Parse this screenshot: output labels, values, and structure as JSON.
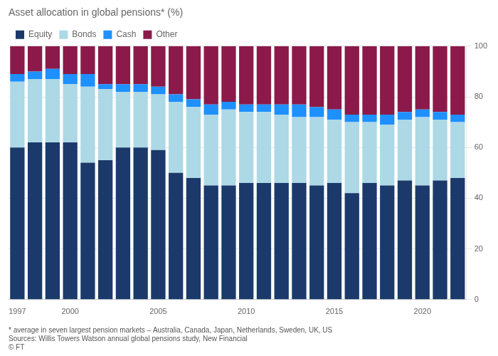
{
  "chart_data": {
    "type": "bar",
    "title": "Asset allocation in global pensions* (%)",
    "categories": [
      1997,
      null,
      null,
      2000,
      null,
      null,
      null,
      null,
      2005,
      null,
      null,
      null,
      null,
      2010,
      null,
      null,
      null,
      null,
      2015,
      null,
      null,
      null,
      null,
      2020,
      null,
      null
    ],
    "series": [
      {
        "name": "Equity",
        "color": "#1b3a6b",
        "values": [
          60,
          62,
          62,
          62,
          54,
          55,
          60,
          60,
          59,
          50,
          48,
          45,
          45,
          46,
          46,
          46,
          46,
          45,
          46,
          42,
          46,
          45,
          47,
          45,
          47,
          48
        ]
      },
      {
        "name": "Bonds",
        "color": "#add8e6",
        "values": [
          26,
          25,
          25,
          23,
          30,
          28,
          22,
          22,
          22,
          28,
          28,
          28,
          30,
          28,
          28,
          27,
          26,
          27,
          25,
          28,
          24,
          24,
          24,
          27,
          24,
          22
        ]
      },
      {
        "name": "Cash",
        "color": "#1e90ff",
        "values": [
          3,
          3,
          4,
          4,
          5,
          2,
          3,
          3,
          3,
          3,
          3,
          4,
          3,
          3,
          3,
          4,
          5,
          4,
          4,
          3,
          3,
          4,
          3,
          3,
          3,
          3
        ]
      },
      {
        "name": "Other",
        "color": "#8b1a4a",
        "values": [
          11,
          10,
          9,
          11,
          11,
          15,
          15,
          15,
          16,
          19,
          21,
          23,
          22,
          23,
          23,
          23,
          23,
          24,
          25,
          27,
          27,
          27,
          26,
          25,
          26,
          27
        ]
      }
    ],
    "stacked": true,
    "ylim": [
      0,
      100
    ],
    "yticks": [
      0,
      20,
      40,
      60,
      80,
      100
    ],
    "grid": true,
    "legend": "upper left",
    "annotations": [
      "* average in seven largest pension markets – Australia, Canada, Japan, Netherlands, Sweden, UK, US",
      "Sources: Willis Towers Watson annual global pensions study, New Financial",
      "© FT"
    ]
  }
}
